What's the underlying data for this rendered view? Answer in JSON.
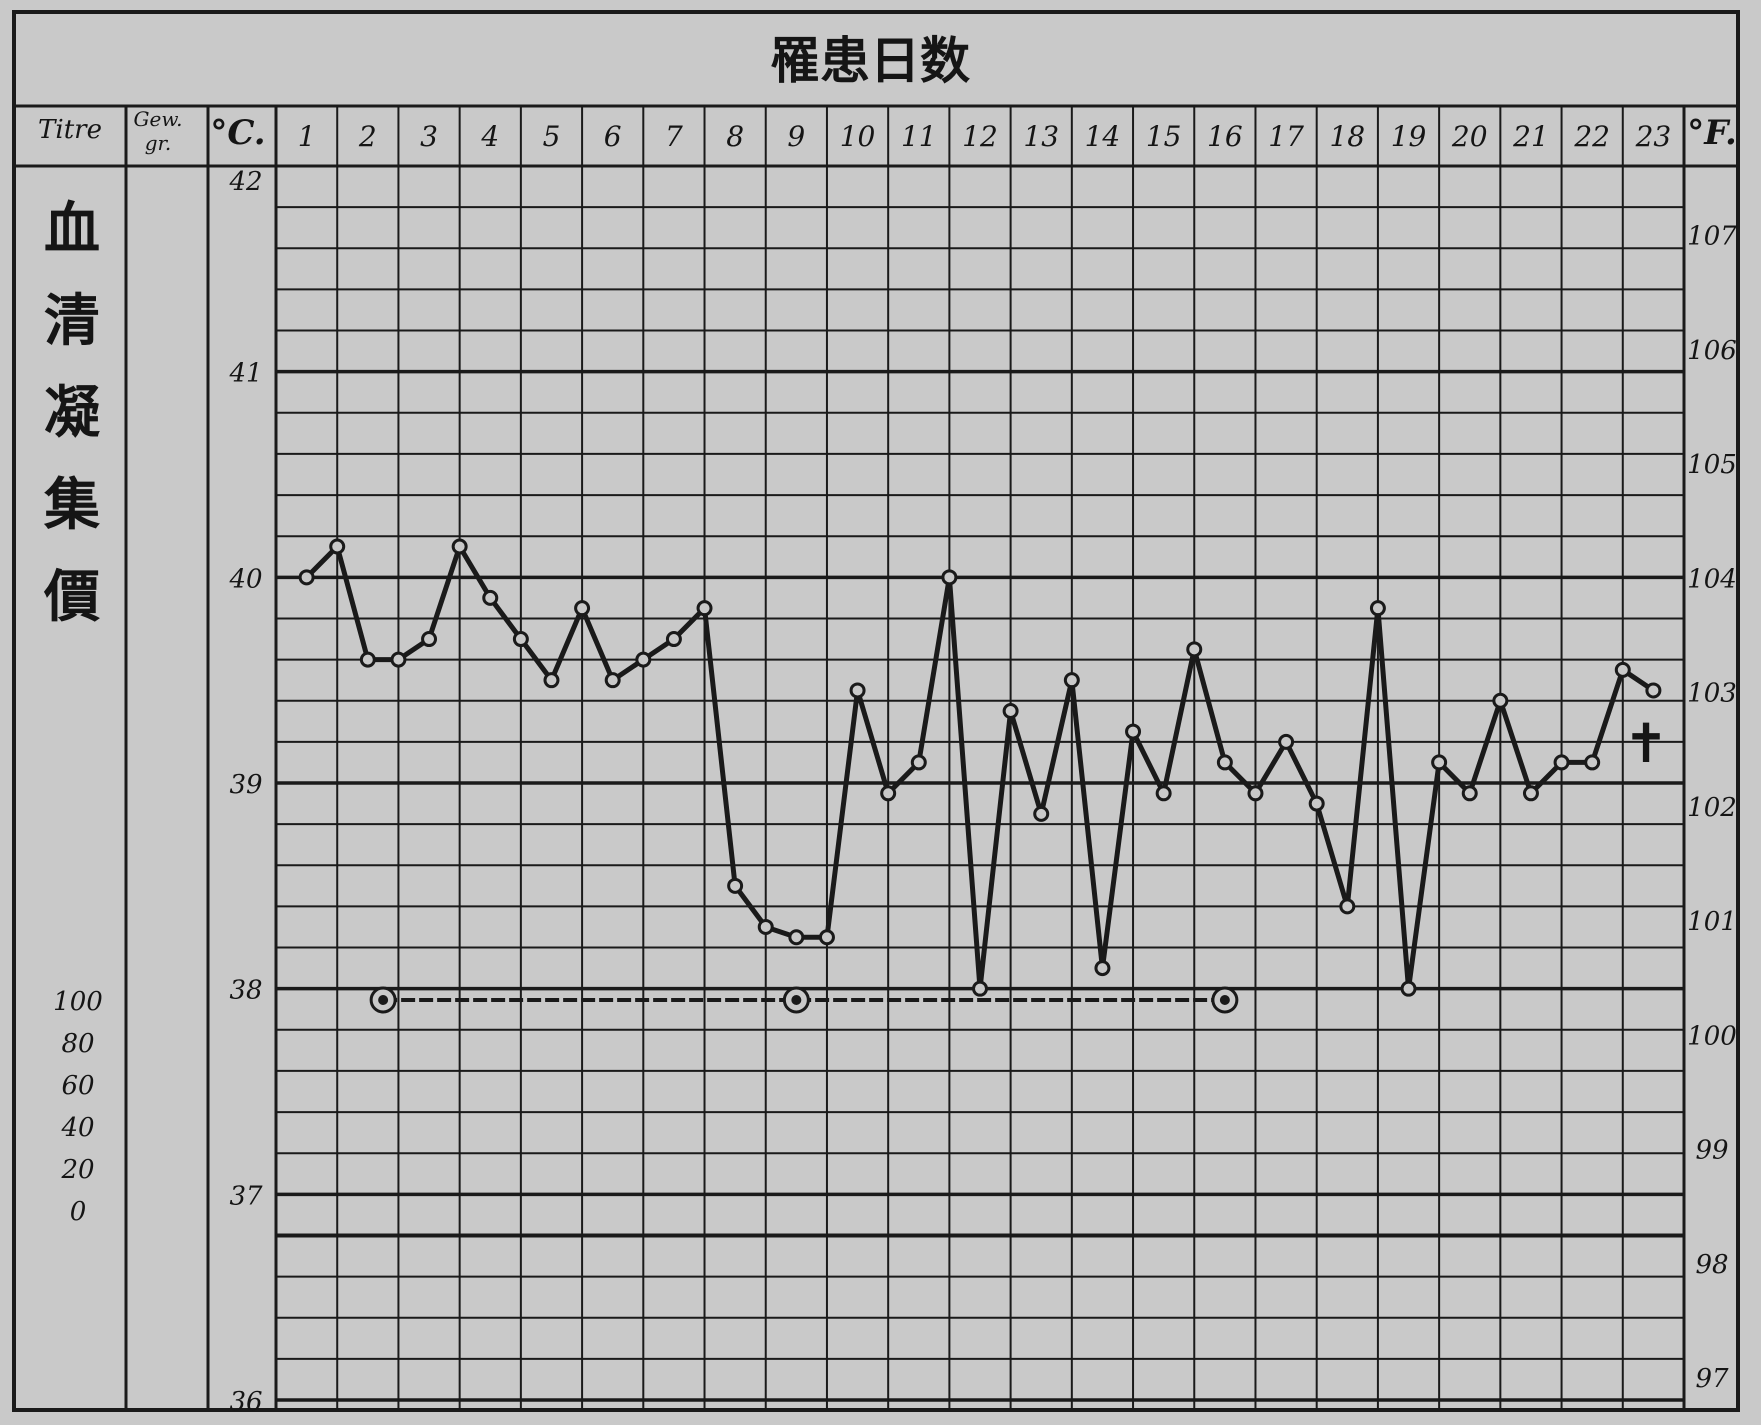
{
  "colors": {
    "paper": "#c9c9c9",
    "ink": "#1a1a1a",
    "grid": "#2a2a2a"
  },
  "header": {
    "title": "罹患日数",
    "col_titre": "Titre",
    "col_gew_1": "Gew.",
    "col_gew_2": "gr.",
    "col_celsius": "°C.",
    "col_fahrenheit": "°F."
  },
  "side_label": [
    "血",
    "清",
    "凝",
    "集",
    "價"
  ],
  "titre_scale": [
    "100",
    "80",
    "60",
    "40",
    "20",
    "0"
  ],
  "chart_data": {
    "type": "line",
    "x_ticks": [
      "1",
      "2",
      "3",
      "4",
      "5",
      "6",
      "7",
      "8",
      "9",
      "10",
      "11",
      "12",
      "13",
      "14",
      "15",
      "16",
      "17",
      "18",
      "19",
      "20",
      "21",
      "22",
      "23"
    ],
    "xlim": [
      1,
      23
    ],
    "y_left_ticks": [
      "42",
      "41",
      "40",
      "39",
      "38",
      "37",
      "36"
    ],
    "y_left_range": [
      36,
      42
    ],
    "y_right_ticks": [
      "107",
      "106",
      "105",
      "104",
      "103",
      "102",
      "101",
      "100",
      "99",
      "98",
      "97"
    ],
    "y_right_values": [
      107,
      106,
      105,
      104,
      103,
      102,
      101,
      100,
      99,
      98,
      97
    ],
    "temperature": {
      "x": [
        1,
        1.5,
        2,
        2.5,
        3,
        3.5,
        4,
        4.5,
        5,
        5.5,
        6,
        6.5,
        7,
        7.5,
        8,
        8.5,
        9,
        9.5,
        10,
        10.5,
        11,
        11.5,
        12,
        12.5,
        13,
        13.5,
        14,
        14.5,
        15,
        15.5,
        16,
        16.5,
        17,
        17.5,
        18,
        18.5,
        19,
        19.5,
        20,
        20.5,
        21,
        21.5,
        22,
        22.5,
        23
      ],
      "y": [
        40.0,
        40.15,
        39.6,
        39.6,
        39.7,
        40.15,
        39.9,
        39.7,
        39.5,
        39.85,
        39.5,
        39.6,
        39.7,
        39.85,
        38.5,
        38.3,
        38.25,
        38.25,
        39.45,
        38.95,
        39.1,
        40.0,
        38.0,
        39.35,
        38.85,
        39.5,
        38.1,
        39.25,
        38.95,
        39.65,
        39.1,
        38.95,
        39.2,
        38.9,
        38.4,
        39.85,
        38.0,
        39.1,
        38.95,
        39.4,
        38.95,
        39.1,
        39.1,
        39.55,
        39.45
      ]
    },
    "titre": {
      "x": [
        2.25,
        9,
        16
      ],
      "y": [
        100,
        100,
        100
      ]
    },
    "death_marker_label": "✝",
    "grid": true
  }
}
